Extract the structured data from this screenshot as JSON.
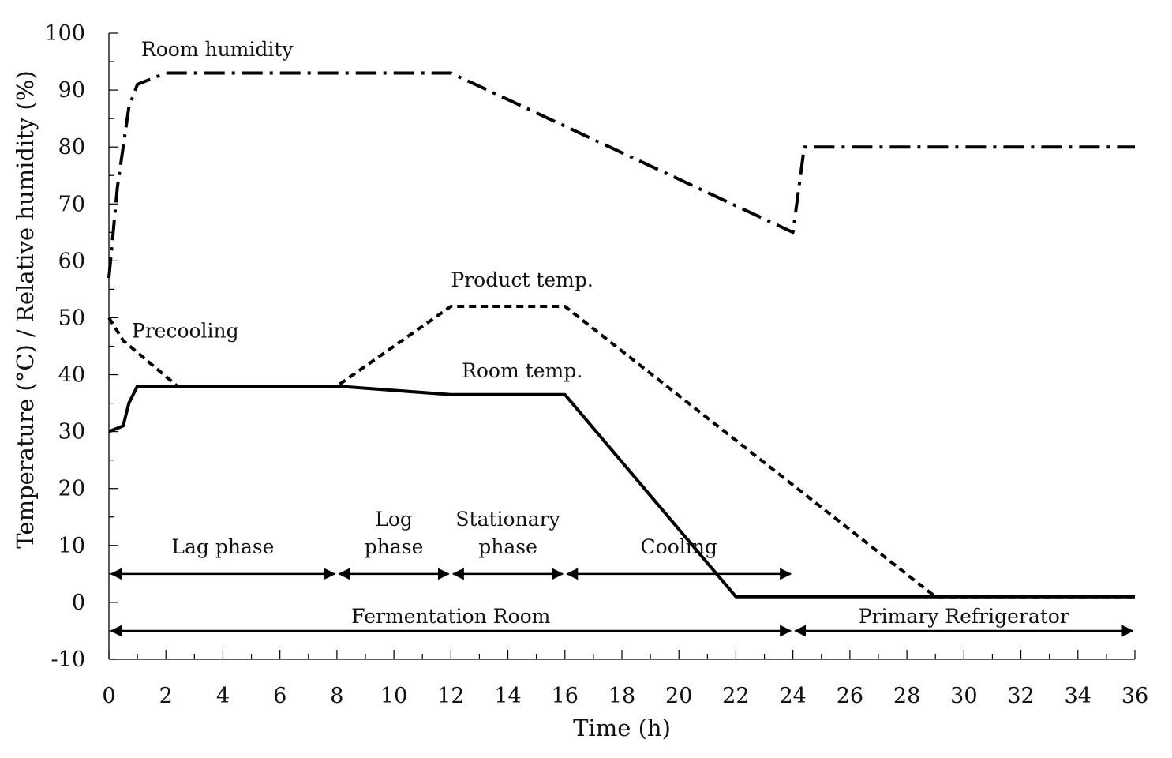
{
  "chart_data": {
    "type": "line",
    "xlabel": "Time (h)",
    "ylabel": "Temperature (°C) / Relative humidity (%)",
    "xlim": [
      0,
      36
    ],
    "ylim": [
      -10,
      100
    ],
    "x_ticks": [
      0,
      2,
      4,
      6,
      8,
      10,
      12,
      14,
      16,
      18,
      20,
      22,
      24,
      26,
      28,
      30,
      32,
      34,
      36
    ],
    "y_ticks": [
      -10,
      0,
      10,
      20,
      30,
      40,
      50,
      60,
      70,
      80,
      90,
      100
    ],
    "grid": false,
    "series": [
      {
        "name": "Room humidity",
        "style": "dash-dot",
        "points": [
          [
            0,
            57
          ],
          [
            0.3,
            73
          ],
          [
            0.7,
            87
          ],
          [
            1,
            91
          ],
          [
            2,
            93
          ],
          [
            12,
            93
          ],
          [
            24,
            65
          ],
          [
            24.4,
            80
          ],
          [
            36,
            80
          ]
        ]
      },
      {
        "name": "Product temp.",
        "style": "dashed",
        "points": [
          [
            0,
            50
          ],
          [
            0.5,
            46
          ],
          [
            2.4,
            38
          ],
          [
            8,
            38
          ],
          [
            12,
            52
          ],
          [
            16,
            52
          ],
          [
            29,
            1
          ],
          [
            36,
            1
          ]
        ]
      },
      {
        "name": "Room temp.",
        "style": "solid",
        "points": [
          [
            0,
            30
          ],
          [
            0.5,
            31
          ],
          [
            0.7,
            35
          ],
          [
            1,
            38
          ],
          [
            8,
            38
          ],
          [
            12,
            36.5
          ],
          [
            16,
            36.5
          ],
          [
            22,
            1
          ],
          [
            36,
            1
          ]
        ]
      }
    ],
    "annotations": [
      {
        "text": "Precooling",
        "x": 0.8,
        "y": 46.5
      },
      {
        "text": "Room humidity",
        "x": 3.8,
        "y": 96
      }
    ],
    "phases": [
      {
        "lines": [
          "Lag phase"
        ],
        "from": 0,
        "to": 8,
        "y": 5
      },
      {
        "lines": [
          "Log",
          "phase"
        ],
        "from": 8,
        "to": 12,
        "y": 5
      },
      {
        "lines": [
          "Stationary",
          "phase"
        ],
        "from": 12,
        "to": 16,
        "y": 5
      },
      {
        "lines": [
          "Cooling"
        ],
        "from": 16,
        "to": 24,
        "y": 5
      }
    ],
    "locations": [
      {
        "label": "Fermentation Room",
        "from": 0,
        "to": 24,
        "y": -5
      },
      {
        "label": "Primary Refrigerator",
        "from": 24,
        "to": 36,
        "y": -5
      }
    ]
  }
}
